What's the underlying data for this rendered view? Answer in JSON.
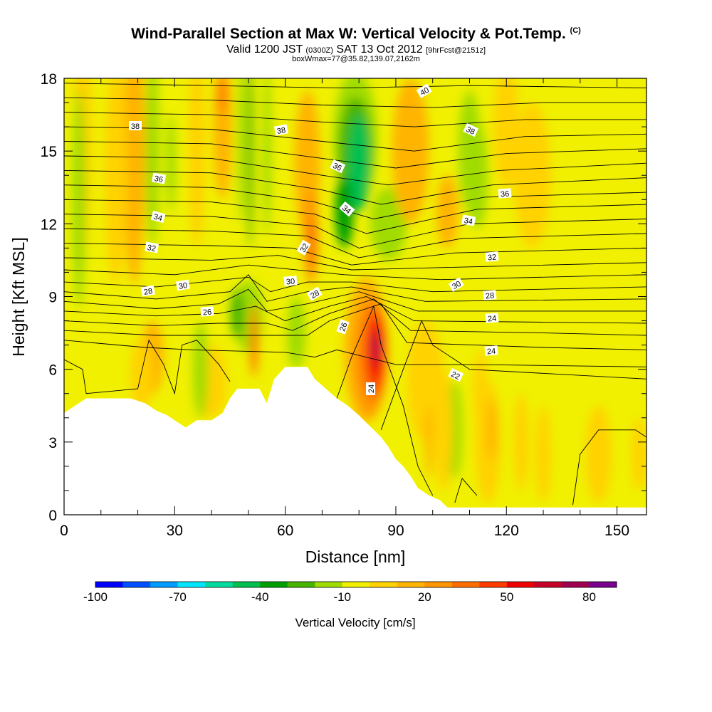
{
  "title": {
    "main": "Wind-Parallel Section at Max W: Vertical Velocity & Pot.Temp.",
    "copyright": "(C)",
    "valid_prefix": "Valid 1200 JST",
    "utc": "(0300Z)",
    "date": "SAT 13 Oct 2012",
    "forecast": "[9hrFcst@2151z]",
    "box": "boxWmax=77@35.82,139.07,2162m"
  },
  "chart_data": {
    "type": "heatmap",
    "xlabel": "Distance [nm]",
    "ylabel": "Height [Kft MSL]",
    "xlim": [
      0,
      158
    ],
    "ylim": [
      0,
      18
    ],
    "x_ticks": [
      "0",
      "30",
      "60",
      "90",
      "120",
      "150"
    ],
    "y_ticks": [
      "0",
      "3",
      "6",
      "9",
      "12",
      "15",
      "18"
    ],
    "colorbar": {
      "label": "Vertical Velocity [cm/s]",
      "tick_labels": [
        "-100",
        "-70",
        "-40",
        "-10",
        "20",
        "50",
        "80"
      ],
      "tick_values": [
        -100,
        -70,
        -40,
        -10,
        20,
        50,
        80
      ],
      "range": [
        -100,
        90
      ],
      "colors": [
        "#0000ff",
        "#0050ff",
        "#009cff",
        "#00e6ff",
        "#00dca0",
        "#00c050",
        "#00a000",
        "#46b400",
        "#a0dc00",
        "#f0f000",
        "#ffd200",
        "#ffb400",
        "#ff9600",
        "#ff6e00",
        "#ff3c00",
        "#f00000",
        "#c80028",
        "#a00050",
        "#78008c"
      ]
    },
    "contour_label_values": [
      "38",
      "38",
      "40",
      "36",
      "38",
      "36",
      "34",
      "34",
      "36",
      "34",
      "32",
      "32",
      "32",
      "30",
      "28",
      "30",
      "30",
      "26",
      "28",
      "28",
      "26",
      "24",
      "22",
      "24"
    ],
    "max_vertical_velocity": 77,
    "theta_contours": [
      {
        "value": 22,
        "label": "22"
      },
      {
        "value": 24,
        "label": "24"
      },
      {
        "value": 26,
        "label": "26"
      },
      {
        "value": 28,
        "label": "28"
      },
      {
        "value": 30,
        "label": "30"
      },
      {
        "value": 32,
        "label": "32"
      },
      {
        "value": 34,
        "label": "34"
      },
      {
        "value": 36,
        "label": "36"
      },
      {
        "value": 38,
        "label": "38"
      },
      {
        "value": 40,
        "label": "40"
      }
    ],
    "terrain_profile": [
      [
        0,
        4.2
      ],
      [
        3,
        4.5
      ],
      [
        6,
        4.8
      ],
      [
        10,
        4.8
      ],
      [
        14,
        4.8
      ],
      [
        18,
        4.8
      ],
      [
        22,
        4.6
      ],
      [
        25,
        4.3
      ],
      [
        28,
        4.1
      ],
      [
        30,
        3.9
      ],
      [
        33,
        3.6
      ],
      [
        36,
        3.9
      ],
      [
        40,
        3.9
      ],
      [
        43,
        4.2
      ],
      [
        45,
        4.8
      ],
      [
        47,
        5.2
      ],
      [
        50,
        5.2
      ],
      [
        53,
        5.2
      ],
      [
        55,
        4.6
      ],
      [
        57,
        5.6
      ],
      [
        60,
        6.1
      ],
      [
        63,
        6.1
      ],
      [
        66,
        6.1
      ],
      [
        68,
        5.6
      ],
      [
        71,
        5.2
      ],
      [
        74,
        4.8
      ],
      [
        77,
        4.5
      ],
      [
        80,
        4.1
      ],
      [
        82,
        3.8
      ],
      [
        84,
        3.5
      ],
      [
        86,
        3.2
      ],
      [
        88,
        2.8
      ],
      [
        90,
        2.3
      ],
      [
        92,
        2.0
      ],
      [
        94,
        1.6
      ],
      [
        96,
        1.1
      ],
      [
        99,
        0.8
      ],
      [
        102,
        0.6
      ],
      [
        104,
        0.3
      ],
      [
        110,
        0.3
      ],
      [
        125,
        0.3
      ],
      [
        140,
        0.3
      ],
      [
        158,
        0.3
      ]
    ]
  }
}
